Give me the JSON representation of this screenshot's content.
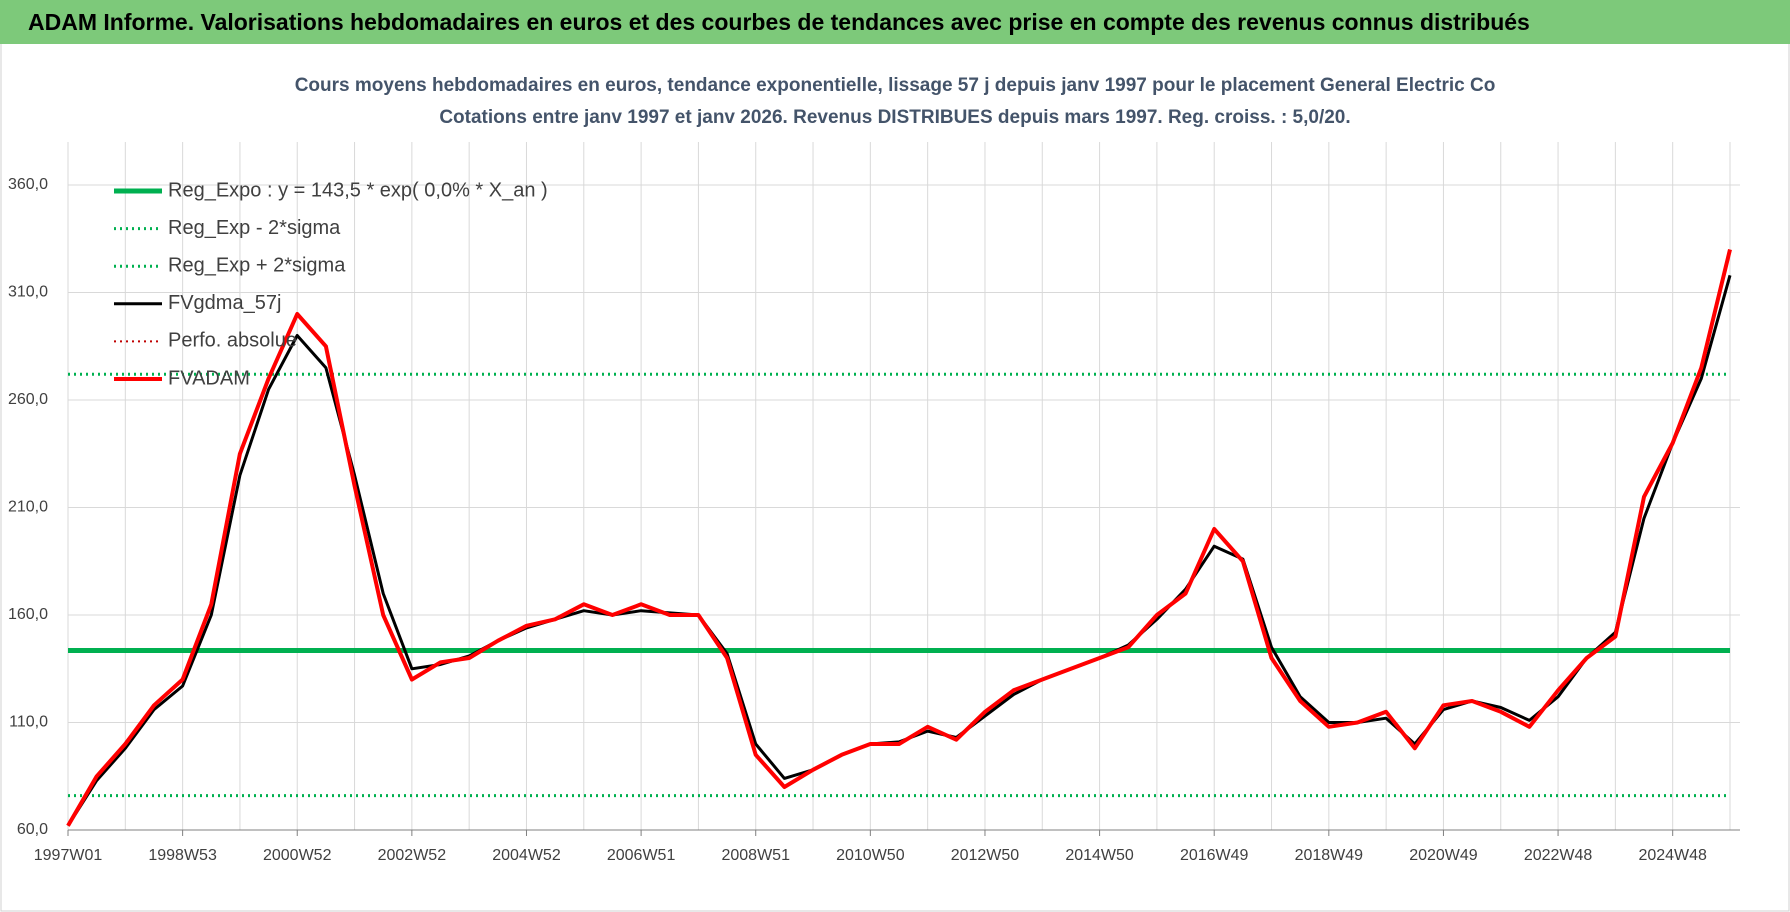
{
  "page_title": "ADAM Informe. Valorisations hebdomadaires en euros et des courbes de tendances avec prise en compte des revenus connus distribués",
  "chart_data": {
    "type": "line",
    "title": "Cours moyens hebdomadaires en euros, tendance exponentielle, lissage 57 j depuis janv 1997  pour le placement General Electric Co",
    "subtitle": "Cotations entre janv 1997 et janv 2026. Revenus DISTRIBUES depuis mars 1997.  Reg. croiss. : 5,0/20.",
    "categories": [
      "1997W01",
      null,
      null,
      null,
      "1998W53",
      null,
      null,
      null,
      "2000W52",
      null,
      null,
      null,
      "2002W52",
      null,
      null,
      null,
      "2004W52",
      null,
      null,
      null,
      "2006W51",
      null,
      null,
      null,
      "2008W51",
      null,
      null,
      null,
      "2010W50",
      null,
      null,
      null,
      "2012W50",
      null,
      null,
      null,
      "2014W50",
      null,
      null,
      null,
      "2016W49",
      null,
      null,
      null,
      "2018W49",
      null,
      null,
      null,
      "2020W49",
      null,
      null,
      null,
      "2022W48",
      null,
      null,
      null,
      "2024W48",
      null,
      null
    ],
    "ylim": [
      60,
      380
    ],
    "yticks": [
      {
        "value": 60,
        "label": "60,0"
      },
      {
        "value": 110,
        "label": "110,0"
      },
      {
        "value": 160,
        "label": "160,0"
      },
      {
        "value": 210,
        "label": "210,0"
      },
      {
        "value": 260,
        "label": "260,0"
      },
      {
        "value": 310,
        "label": "310,0"
      },
      {
        "value": 360,
        "label": "360,0"
      }
    ],
    "grid": true,
    "legend": "upper left",
    "series": [
      {
        "name": "Reg_Expo : y = 143,5 * exp( 0,0% *  X_an )",
        "color": "#00b050",
        "style": "solid",
        "width": 5,
        "values": [
          143.5,
          143.5,
          143.5,
          143.5,
          143.5,
          143.5,
          143.5,
          143.5,
          143.5,
          143.5,
          143.5,
          143.5,
          143.5,
          143.5,
          143.5,
          143.5,
          143.5,
          143.5,
          143.5,
          143.5,
          143.5,
          143.5,
          143.5,
          143.5,
          143.5,
          143.5,
          143.5,
          143.5,
          143.5,
          143.5,
          143.5,
          143.5,
          143.5,
          143.5,
          143.5,
          143.5,
          143.5,
          143.5,
          143.5,
          143.5,
          143.5,
          143.5,
          143.5,
          143.5,
          143.5,
          143.5,
          143.5,
          143.5,
          143.5,
          143.5,
          143.5,
          143.5,
          143.5,
          143.5,
          143.5,
          143.5,
          143.5,
          143.5,
          143.5
        ]
      },
      {
        "name": "Reg_Exp - 2*sigma",
        "color": "#00b050",
        "style": "dotted",
        "width": 3,
        "values": [
          76,
          76,
          76,
          76,
          76,
          76,
          76,
          76,
          76,
          76,
          76,
          76,
          76,
          76,
          76,
          76,
          76,
          76,
          76,
          76,
          76,
          76,
          76,
          76,
          76,
          76,
          76,
          76,
          76,
          76,
          76,
          76,
          76,
          76,
          76,
          76,
          76,
          76,
          76,
          76,
          76,
          76,
          76,
          76,
          76,
          76,
          76,
          76,
          76,
          76,
          76,
          76,
          76,
          76,
          76,
          76,
          76,
          76,
          76
        ]
      },
      {
        "name": "Reg_Exp + 2*sigma",
        "color": "#00b050",
        "style": "dotted",
        "width": 3,
        "values": [
          272,
          272,
          272,
          272,
          272,
          272,
          272,
          272,
          272,
          272,
          272,
          272,
          272,
          272,
          272,
          272,
          272,
          272,
          272,
          272,
          272,
          272,
          272,
          272,
          272,
          272,
          272,
          272,
          272,
          272,
          272,
          272,
          272,
          272,
          272,
          272,
          272,
          272,
          272,
          272,
          272,
          272,
          272,
          272,
          272,
          272,
          272,
          272,
          272,
          272,
          272,
          272,
          272,
          272,
          272,
          272,
          272,
          272,
          272
        ]
      },
      {
        "name": "FVgdma_57j",
        "color": "#000000",
        "style": "solid",
        "width": 3,
        "values": [
          62,
          83,
          98,
          116,
          127,
          160,
          225,
          265,
          290,
          275,
          225,
          170,
          135,
          137,
          141,
          148,
          154,
          158,
          162,
          160,
          162,
          161,
          160,
          142,
          100,
          84,
          88,
          95,
          100,
          101,
          106,
          103,
          113,
          123,
          130,
          135,
          140,
          146,
          158,
          172,
          192,
          186,
          145,
          122,
          110,
          110,
          112,
          100,
          116,
          120,
          117,
          111,
          122,
          140,
          152,
          205,
          240,
          270,
          318
        ]
      },
      {
        "name": "Perfo. absolue",
        "color": "#c00000",
        "style": "dotted",
        "width": 2,
        "values": [
          null,
          null,
          null,
          null,
          null,
          null,
          null,
          null,
          null,
          null,
          null,
          null,
          null,
          null,
          null,
          null,
          null,
          null,
          null,
          null,
          null,
          null,
          null,
          null,
          null,
          null,
          null,
          null,
          null,
          null,
          null,
          null,
          null,
          null,
          null,
          null,
          null,
          null,
          null,
          null,
          null,
          null,
          null,
          null,
          null,
          null,
          null,
          null,
          null,
          null,
          null,
          null,
          null,
          null,
          null,
          null,
          null,
          null,
          null
        ]
      },
      {
        "name": "FVADAM",
        "color": "#ff0000",
        "style": "solid",
        "width": 4,
        "values": [
          62,
          85,
          100,
          118,
          130,
          165,
          235,
          270,
          300,
          285,
          220,
          160,
          130,
          138,
          140,
          148,
          155,
          158,
          165,
          160,
          165,
          160,
          160,
          140,
          95,
          80,
          88,
          95,
          100,
          100,
          108,
          102,
          115,
          125,
          130,
          135,
          140,
          145,
          160,
          170,
          200,
          185,
          140,
          120,
          108,
          110,
          115,
          98,
          118,
          120,
          115,
          108,
          125,
          140,
          150,
          215,
          240,
          275,
          330
        ]
      }
    ]
  }
}
